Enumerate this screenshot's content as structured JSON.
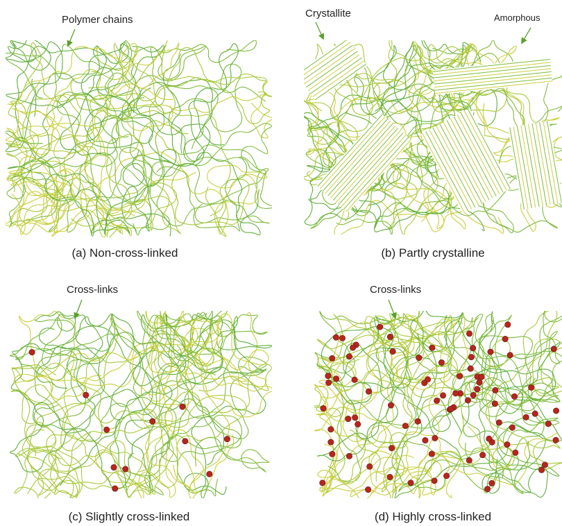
{
  "panels": [
    {
      "caption": "(a) Non-cross-linked",
      "annotations": [
        "Polymer chains"
      ]
    },
    {
      "caption": "(b) Partly crystalline",
      "annotations": [
        "Crystallite",
        "Amorphous"
      ]
    },
    {
      "caption": "(c) Slightly cross-linked",
      "annotations": [
        "Cross-links"
      ]
    },
    {
      "caption": "(d) Highly cross-linked",
      "annotations": [
        "Cross-links"
      ]
    }
  ]
}
